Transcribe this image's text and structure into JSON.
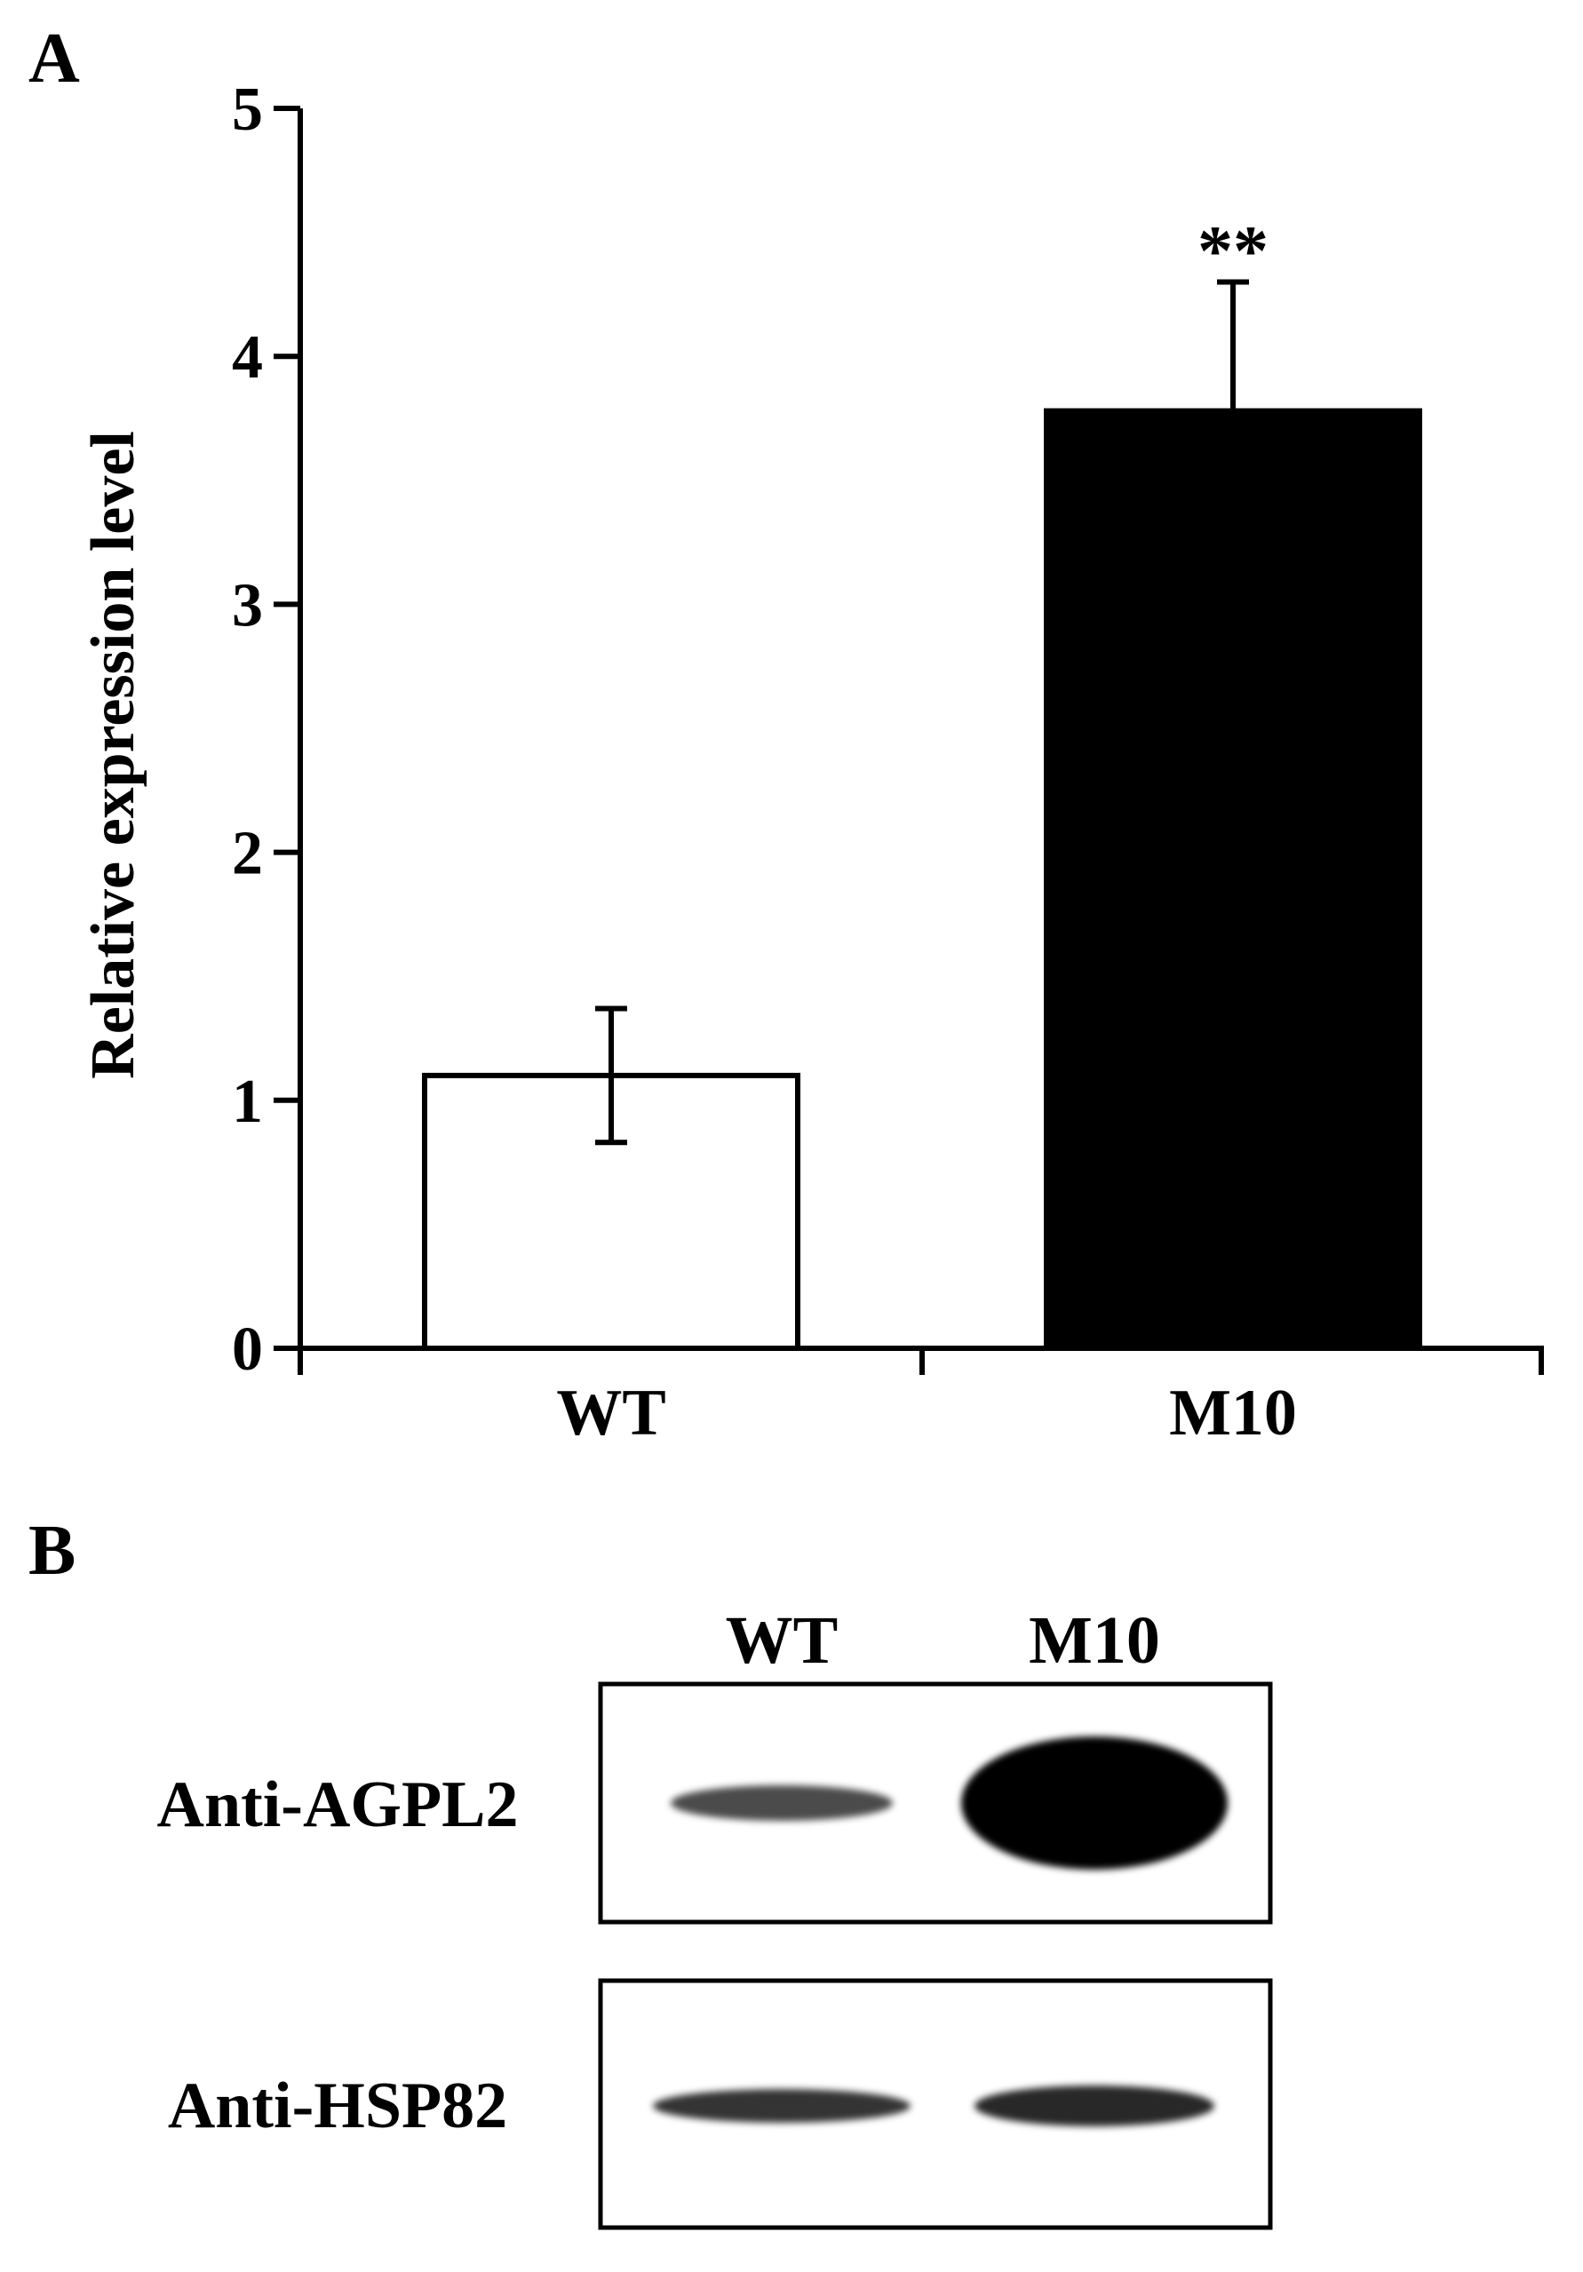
{
  "panel_a": {
    "label": "A"
  },
  "panel_b": {
    "label": "B",
    "lanes": [
      "WT",
      "M10"
    ],
    "blots": [
      {
        "label": "Anti-AGPL2",
        "band_intensity": [
          0.35,
          1.0
        ]
      },
      {
        "label": "Anti-HSP82",
        "band_intensity": [
          0.55,
          0.65
        ]
      }
    ]
  },
  "chart_data": {
    "type": "bar",
    "categories": [
      "WT",
      "M10"
    ],
    "values": [
      1.1,
      3.78
    ],
    "errors": [
      0.27,
      0.52
    ],
    "annotations": [
      "",
      "**"
    ],
    "bar_colors": [
      "#ffffff",
      "#000000"
    ],
    "title": "",
    "xlabel": "",
    "ylabel": "Relative expression level",
    "ylim": [
      0,
      5
    ],
    "yticks": [
      0,
      1,
      2,
      3,
      4,
      5
    ],
    "grid": false
  }
}
